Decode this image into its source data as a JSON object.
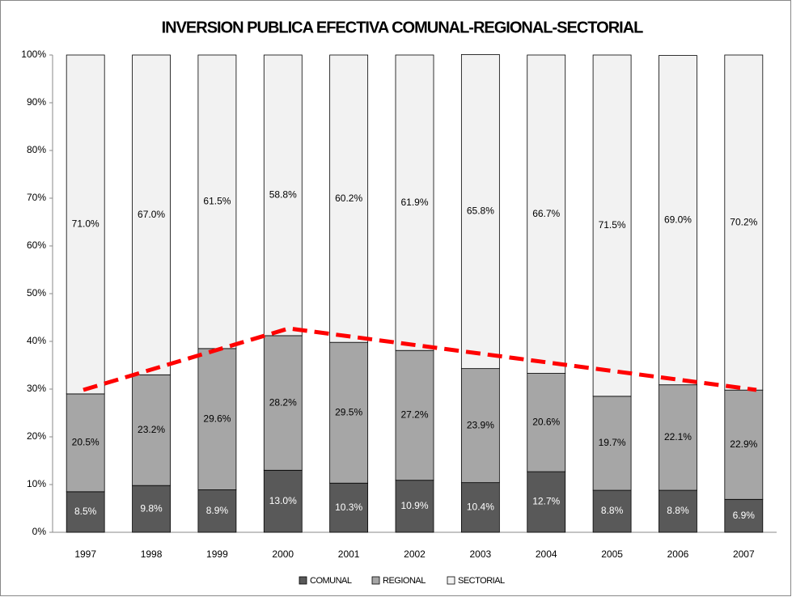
{
  "chart_data": {
    "type": "stacked_bar",
    "title": "INVERSION PUBLICA EFECTIVA COMUNAL-REGIONAL-SECTORIAL",
    "categories": [
      "1997",
      "1998",
      "1999",
      "2000",
      "2001",
      "2002",
      "2003",
      "2004",
      "2005",
      "2006",
      "2007"
    ],
    "series": [
      {
        "name": "COMUNAL",
        "color": "#595959",
        "values": [
          8.5,
          9.8,
          8.9,
          13.0,
          10.3,
          10.9,
          10.4,
          12.7,
          8.8,
          8.8,
          6.9
        ],
        "value_labels": [
          "8.5%",
          "9.8%",
          "8.9%",
          "13.0%",
          "10.3%",
          "10.9%",
          "10.4%",
          "12.7%",
          "8.8%",
          "8.8%",
          "6.9%"
        ]
      },
      {
        "name": "REGIONAL",
        "color": "#a6a6a6",
        "values": [
          20.5,
          23.2,
          29.6,
          28.2,
          29.5,
          27.2,
          23.9,
          20.6,
          19.7,
          22.1,
          22.9
        ],
        "value_labels": [
          "20.5%",
          "23.2%",
          "29.6%",
          "28.2%",
          "29.5%",
          "27.2%",
          "23.9%",
          "20.6%",
          "19.7%",
          "22.1%",
          "22.9%"
        ]
      },
      {
        "name": "SECTORIAL",
        "color": "#f2f2f2",
        "values": [
          71.0,
          67.0,
          61.5,
          58.8,
          60.2,
          61.9,
          65.8,
          66.7,
          71.5,
          69.0,
          70.2
        ],
        "value_labels": [
          "71.0%",
          "67.0%",
          "61.5%",
          "58.8%",
          "60.2%",
          "61.9%",
          "65.8%",
          "66.7%",
          "71.5%",
          "69.0%",
          "70.2%"
        ]
      }
    ],
    "ylim": [
      0,
      100
    ],
    "yticks": [
      {
        "value": 0,
        "label": "0%"
      },
      {
        "value": 10,
        "label": "10%"
      },
      {
        "value": 20,
        "label": "20%"
      },
      {
        "value": 30,
        "label": "30%"
      },
      {
        "value": 40,
        "label": "40%"
      },
      {
        "value": 50,
        "label": "50%"
      },
      {
        "value": 60,
        "label": "60%"
      },
      {
        "value": 70,
        "label": "70%"
      },
      {
        "value": 80,
        "label": "80%"
      },
      {
        "value": 90,
        "label": "90%"
      },
      {
        "value": 100,
        "label": "100%"
      }
    ],
    "grid": false
  }
}
